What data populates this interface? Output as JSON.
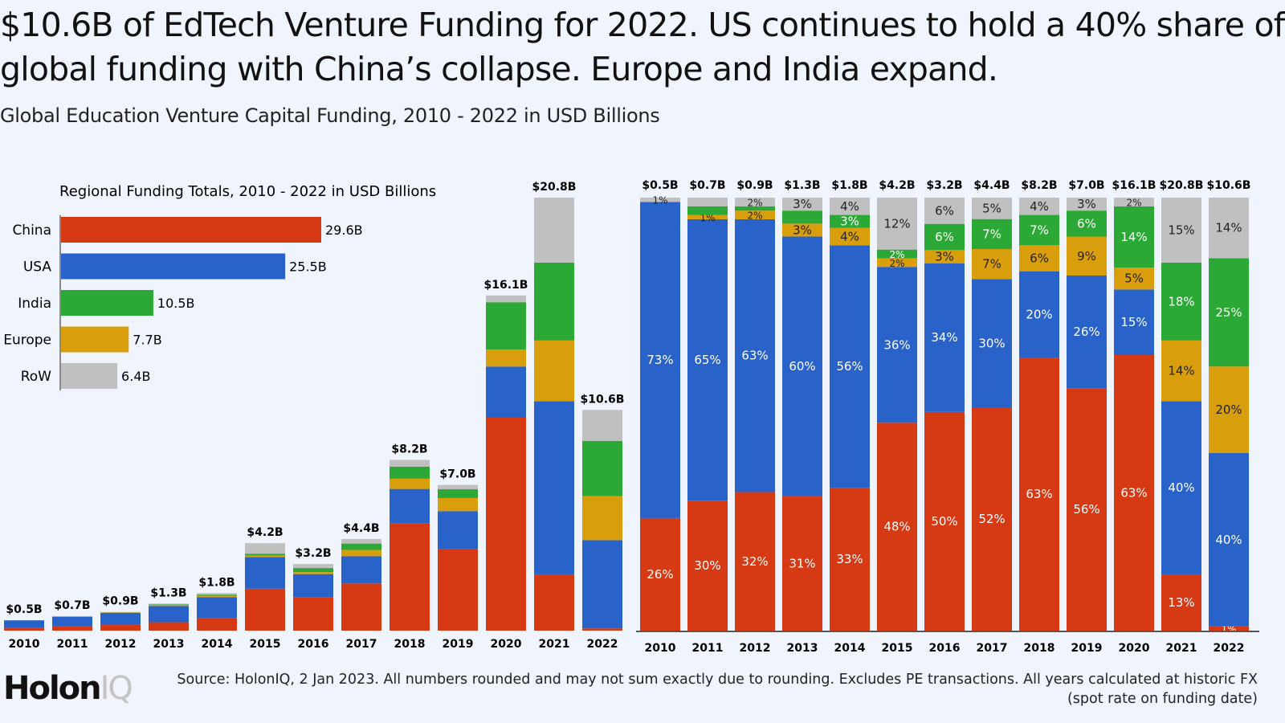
{
  "title": "$10.6B of EdTech Venture Funding for 2022. US continues to hold a 40% share of global funding with China’s collapse. Europe and India expand.",
  "subtitle": "Global Education Venture Capital Funding, 2010 - 2022 in USD Billions",
  "logo": {
    "text_main": "Holon",
    "text_accent": "IQ"
  },
  "source": "Source: HolonIQ, 2 Jan 2023. All numbers rounded and may not sum exactly due to rounding. Excludes PE transactions. All years calculated at historic FX (spot rate on funding date)",
  "colors": {
    "China": "#D63A14",
    "USA": "#2962C8",
    "Europe": "#D99E0B",
    "India": "#2CA836",
    "RoW": "#C0C0C0",
    "background": "#F0F4FC"
  },
  "chart_data": [
    {
      "type": "bar",
      "stacked": true,
      "categories": [
        "2010",
        "2011",
        "2012",
        "2013",
        "2014",
        "2015",
        "2016",
        "2017",
        "2018",
        "2019",
        "2020",
        "2021",
        "2022"
      ],
      "total_labels": [
        "$0.5B",
        "$0.7B",
        "$0.9B",
        "$1.3B",
        "$1.8B",
        "$4.2B",
        "$3.2B",
        "$4.4B",
        "$8.2B",
        "$7.0B",
        "$16.1B",
        "$20.8B",
        "$10.6B"
      ],
      "totals": [
        0.5,
        0.7,
        0.9,
        1.3,
        1.8,
        4.2,
        3.2,
        4.4,
        8.2,
        7.0,
        16.1,
        20.8,
        10.6
      ],
      "series_order": [
        "China",
        "USA",
        "Europe",
        "India",
        "RoW"
      ],
      "ylim": [
        0,
        20.8
      ],
      "grid": false
    },
    {
      "type": "bar",
      "title": "Regional Funding Totals, 2010 - 2022 in USD Billions",
      "orientation": "horizontal",
      "categories": [
        "China",
        "USA",
        "India",
        "Europe",
        "RoW"
      ],
      "values": [
        29.6,
        25.5,
        10.5,
        7.7,
        6.4
      ],
      "value_labels": [
        "29.6B",
        "25.5B",
        "10.5B",
        "7.7B",
        "6.4B"
      ],
      "colors": [
        "#D63A14",
        "#2962C8",
        "#2CA836",
        "#D99E0B",
        "#C0C0C0"
      ]
    },
    {
      "type": "bar",
      "stacked": true,
      "normalized": true,
      "categories": [
        "2010",
        "2011",
        "2012",
        "2013",
        "2014",
        "2015",
        "2016",
        "2017",
        "2018",
        "2019",
        "2020",
        "2021",
        "2022"
      ],
      "total_labels": [
        "$0.5B",
        "$0.7B",
        "$0.9B",
        "$1.3B",
        "$1.8B",
        "$4.2B",
        "$3.2B",
        "$4.4B",
        "$8.2B",
        "$7.0B",
        "$16.1B",
        "$20.8B",
        "$10.6B"
      ],
      "series": [
        {
          "name": "China",
          "values": [
            26,
            30,
            32,
            31,
            33,
            48,
            50,
            52,
            63,
            56,
            63,
            13,
            1
          ],
          "labels": [
            "26%",
            "30%",
            "32%",
            "31%",
            "33%",
            "48%",
            "50%",
            "52%",
            "63%",
            "56%",
            "63%",
            "13%",
            "1%"
          ]
        },
        {
          "name": "USA",
          "values": [
            73,
            65,
            63,
            60,
            56,
            36,
            34,
            30,
            20,
            26,
            15,
            40,
            40
          ],
          "labels": [
            "73%",
            "65%",
            "63%",
            "60%",
            "56%",
            "36%",
            "34%",
            "30%",
            "20%",
            "26%",
            "15%",
            "40%",
            "40%"
          ]
        },
        {
          "name": "Europe",
          "values": [
            0,
            1,
            2,
            3,
            4,
            2,
            3,
            7,
            6,
            9,
            5,
            14,
            20
          ],
          "labels": [
            "",
            "1%",
            "2%",
            "3%",
            "4%",
            "2%",
            "3%",
            "7%",
            "6%",
            "9%",
            "5%",
            "14%",
            "20%"
          ]
        },
        {
          "name": "India",
          "values": [
            0,
            2,
            1,
            3,
            3,
            2,
            6,
            7,
            7,
            6,
            14,
            18,
            25
          ],
          "labels": [
            "",
            "",
            "",
            "",
            "3%",
            "2%",
            "6%",
            "7%",
            "7%",
            "6%",
            "14%",
            "18%",
            "25%"
          ]
        },
        {
          "name": "RoW",
          "values": [
            1,
            2,
            2,
            3,
            4,
            12,
            6,
            5,
            4,
            3,
            2,
            15,
            14
          ],
          "labels": [
            "1%",
            "",
            "2%",
            "3%",
            "4%",
            "12%",
            "6%",
            "5%",
            "4%",
            "3%",
            "2%",
            "15%",
            "14%"
          ]
        }
      ],
      "ylim": [
        0,
        100
      ],
      "grid": false
    }
  ]
}
